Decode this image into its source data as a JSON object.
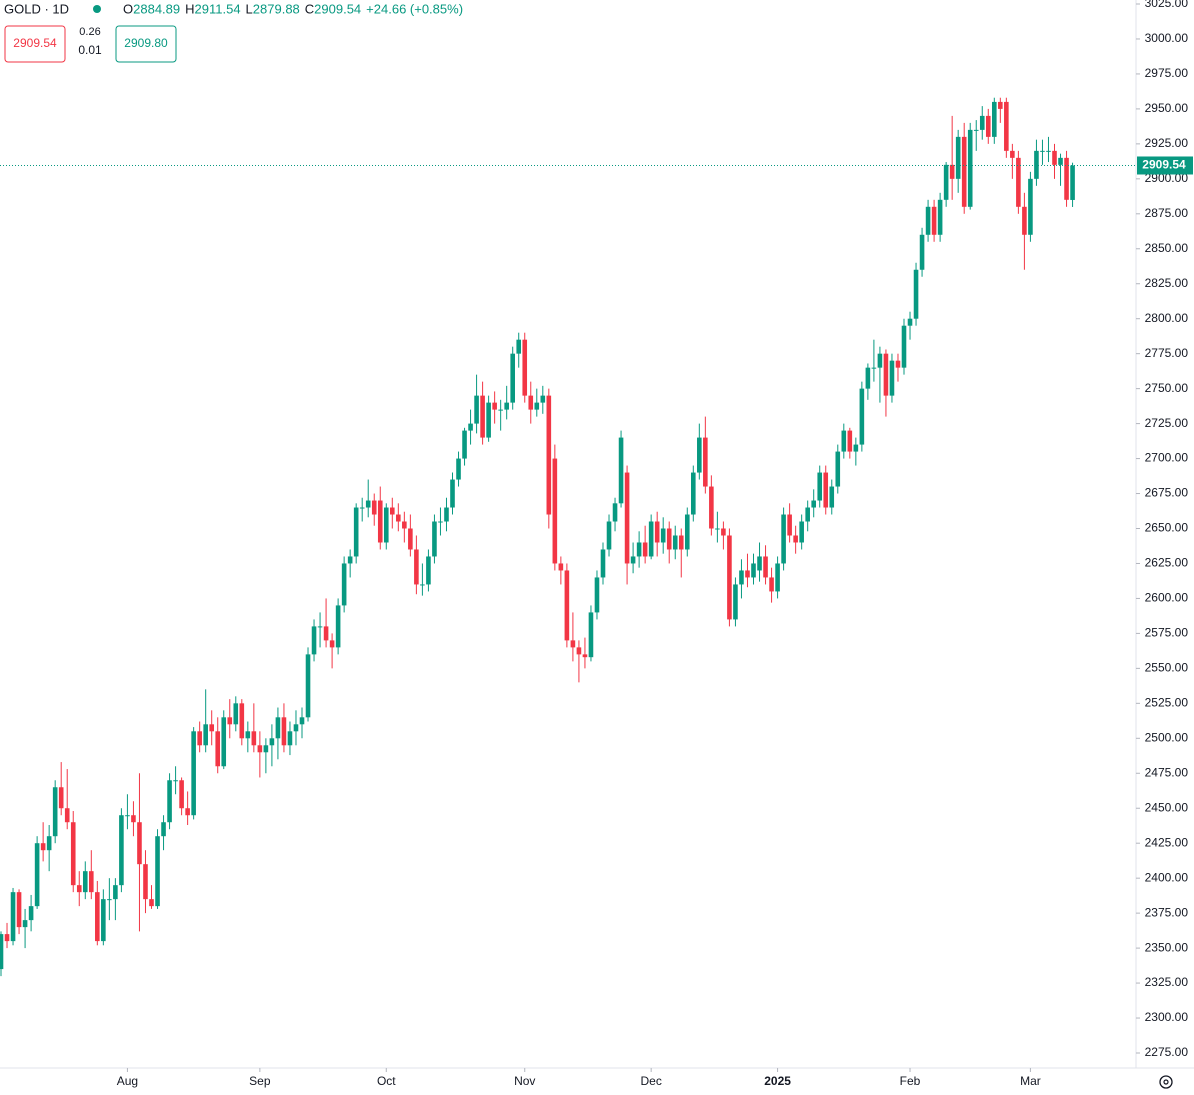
{
  "chart_data": {
    "type": "candlestick",
    "symbol": "GOLD · 1D",
    "legend": {
      "o": "O",
      "h": "H",
      "l": "L",
      "c": "C",
      "change": "+24.66 (+0.85%)"
    },
    "trade_panel": {
      "sell": "2909.54",
      "spread_top": "0.26",
      "spread_bottom": "0.01",
      "buy": "2909.80"
    },
    "up_color": "#089981",
    "down_color": "#f23645",
    "ylim": [
      2275,
      3025
    ],
    "yticks": [
      {
        "value": 2275,
        "label": "2275.00"
      },
      {
        "value": 2300,
        "label": "2300.00"
      },
      {
        "value": 2325,
        "label": "2325.00"
      },
      {
        "value": 2350,
        "label": "2350.00"
      },
      {
        "value": 2375,
        "label": "2375.00"
      },
      {
        "value": 2400,
        "label": "2400.00"
      },
      {
        "value": 2425,
        "label": "2425.00"
      },
      {
        "value": 2450,
        "label": "2450.00"
      },
      {
        "value": 2475,
        "label": "2475.00"
      },
      {
        "value": 2500,
        "label": "2500.00"
      },
      {
        "value": 2525,
        "label": "2525.00"
      },
      {
        "value": 2550,
        "label": "2550.00"
      },
      {
        "value": 2575,
        "label": "2575.00"
      },
      {
        "value": 2600,
        "label": "2600.00"
      },
      {
        "value": 2625,
        "label": "2625.00"
      },
      {
        "value": 2650,
        "label": "2650.00"
      },
      {
        "value": 2675,
        "label": "2675.00"
      },
      {
        "value": 2700,
        "label": "2700.00"
      },
      {
        "value": 2725,
        "label": "2725.00"
      },
      {
        "value": 2750,
        "label": "2750.00"
      },
      {
        "value": 2775,
        "label": "2775.00"
      },
      {
        "value": 2800,
        "label": "2800.00"
      },
      {
        "value": 2825,
        "label": "2825.00"
      },
      {
        "value": 2850,
        "label": "2850.00"
      },
      {
        "value": 2875,
        "label": "2875.00"
      },
      {
        "value": 2900,
        "label": "2900.00"
      },
      {
        "value": 2925,
        "label": "2925.00"
      },
      {
        "value": 2950,
        "label": "2950.00"
      },
      {
        "value": 2975,
        "label": "2975.00"
      },
      {
        "value": 3000,
        "label": "3000.00"
      },
      {
        "value": 3025,
        "label": "3025.00"
      }
    ],
    "xticks": [
      {
        "value": 21,
        "label": "Aug"
      },
      {
        "value": 43,
        "label": "Sep"
      },
      {
        "value": 64,
        "label": "Oct"
      },
      {
        "value": 87,
        "label": "Nov"
      },
      {
        "value": 108,
        "label": "Dec"
      },
      {
        "value": 129,
        "label": "2025"
      },
      {
        "value": 151,
        "label": "Feb"
      },
      {
        "value": 171,
        "label": "Mar"
      }
    ],
    "ohlc": [
      [
        2335,
        2362,
        2330,
        2360
      ],
      [
        2360,
        2368,
        2350,
        2355
      ],
      [
        2355,
        2393,
        2352,
        2390
      ],
      [
        2390,
        2392,
        2360,
        2365
      ],
      [
        2365,
        2378,
        2350,
        2370
      ],
      [
        2370,
        2388,
        2362,
        2380
      ],
      [
        2380,
        2430,
        2378,
        2425
      ],
      [
        2425,
        2440,
        2412,
        2420
      ],
      [
        2420,
        2438,
        2405,
        2430
      ],
      [
        2430,
        2470,
        2425,
        2465
      ],
      [
        2465,
        2483,
        2445,
        2450
      ],
      [
        2450,
        2478,
        2435,
        2440
      ],
      [
        2440,
        2448,
        2390,
        2395
      ],
      [
        2395,
        2405,
        2380,
        2390
      ],
      [
        2390,
        2412,
        2385,
        2405
      ],
      [
        2405,
        2420,
        2385,
        2390
      ],
      [
        2390,
        2398,
        2352,
        2355
      ],
      [
        2355,
        2392,
        2352,
        2385
      ],
      [
        2385,
        2400,
        2370,
        2385
      ],
      [
        2385,
        2400,
        2370,
        2395
      ],
      [
        2395,
        2450,
        2390,
        2445
      ],
      [
        2445,
        2460,
        2435,
        2445
      ],
      [
        2445,
        2455,
        2430,
        2440
      ],
      [
        2440,
        2475,
        2362,
        2410
      ],
      [
        2410,
        2420,
        2375,
        2385
      ],
      [
        2385,
        2395,
        2378,
        2380
      ],
      [
        2380,
        2435,
        2378,
        2430
      ],
      [
        2430,
        2445,
        2420,
        2440
      ],
      [
        2440,
        2475,
        2435,
        2470
      ],
      [
        2470,
        2480,
        2460,
        2470
      ],
      [
        2470,
        2472,
        2445,
        2450
      ],
      [
        2450,
        2462,
        2438,
        2445
      ],
      [
        2445,
        2508,
        2442,
        2505
      ],
      [
        2505,
        2512,
        2490,
        2495
      ],
      [
        2495,
        2535,
        2490,
        2510
      ],
      [
        2510,
        2520,
        2495,
        2505
      ],
      [
        2505,
        2515,
        2475,
        2480
      ],
      [
        2480,
        2520,
        2478,
        2515
      ],
      [
        2515,
        2528,
        2500,
        2510
      ],
      [
        2510,
        2530,
        2505,
        2525
      ],
      [
        2525,
        2528,
        2495,
        2500
      ],
      [
        2500,
        2512,
        2490,
        2505
      ],
      [
        2505,
        2525,
        2490,
        2495
      ],
      [
        2495,
        2505,
        2472,
        2490
      ],
      [
        2490,
        2500,
        2475,
        2495
      ],
      [
        2495,
        2510,
        2480,
        2500
      ],
      [
        2500,
        2522,
        2485,
        2515
      ],
      [
        2515,
        2525,
        2490,
        2495
      ],
      [
        2495,
        2512,
        2488,
        2505
      ],
      [
        2505,
        2520,
        2495,
        2510
      ],
      [
        2510,
        2522,
        2500,
        2515
      ],
      [
        2515,
        2565,
        2512,
        2560
      ],
      [
        2560,
        2585,
        2555,
        2580
      ],
      [
        2580,
        2590,
        2565,
        2580
      ],
      [
        2580,
        2600,
        2565,
        2570
      ],
      [
        2570,
        2575,
        2550,
        2565
      ],
      [
        2565,
        2600,
        2560,
        2595
      ],
      [
        2595,
        2630,
        2590,
        2625
      ],
      [
        2625,
        2635,
        2615,
        2630
      ],
      [
        2630,
        2668,
        2625,
        2665
      ],
      [
        2665,
        2672,
        2655,
        2665
      ],
      [
        2665,
        2685,
        2658,
        2670
      ],
      [
        2670,
        2675,
        2652,
        2660
      ],
      [
        2670,
        2680,
        2635,
        2640
      ],
      [
        2640,
        2668,
        2635,
        2665
      ],
      [
        2665,
        2672,
        2650,
        2660
      ],
      [
        2660,
        2668,
        2648,
        2655
      ],
      [
        2655,
        2662,
        2640,
        2650
      ],
      [
        2650,
        2660,
        2630,
        2635
      ],
      [
        2635,
        2645,
        2603,
        2610
      ],
      [
        2610,
        2625,
        2602,
        2610
      ],
      [
        2610,
        2635,
        2605,
        2630
      ],
      [
        2630,
        2660,
        2625,
        2655
      ],
      [
        2655,
        2665,
        2645,
        2655
      ],
      [
        2655,
        2672,
        2648,
        2665
      ],
      [
        2665,
        2690,
        2660,
        2685
      ],
      [
        2685,
        2705,
        2680,
        2700
      ],
      [
        2700,
        2722,
        2695,
        2720
      ],
      [
        2720,
        2735,
        2710,
        2725
      ],
      [
        2725,
        2760,
        2718,
        2745
      ],
      [
        2745,
        2755,
        2710,
        2715
      ],
      [
        2715,
        2745,
        2712,
        2740
      ],
      [
        2740,
        2748,
        2725,
        2735
      ],
      [
        2735,
        2742,
        2720,
        2735
      ],
      [
        2735,
        2752,
        2728,
        2740
      ],
      [
        2740,
        2780,
        2735,
        2775
      ],
      [
        2775,
        2790,
        2765,
        2785
      ],
      [
        2785,
        2790,
        2740,
        2745
      ],
      [
        2745,
        2755,
        2725,
        2735
      ],
      [
        2735,
        2750,
        2730,
        2740
      ],
      [
        2740,
        2752,
        2732,
        2745
      ],
      [
        2745,
        2750,
        2650,
        2660
      ],
      [
        2700,
        2710,
        2620,
        2625
      ],
      [
        2625,
        2630,
        2610,
        2620
      ],
      [
        2620,
        2625,
        2565,
        2570
      ],
      [
        2570,
        2590,
        2555,
        2565
      ],
      [
        2565,
        2570,
        2540,
        2560
      ],
      [
        2560,
        2572,
        2550,
        2558
      ],
      [
        2558,
        2595,
        2555,
        2590
      ],
      [
        2590,
        2620,
        2585,
        2615
      ],
      [
        2615,
        2640,
        2610,
        2635
      ],
      [
        2635,
        2660,
        2630,
        2655
      ],
      [
        2655,
        2672,
        2648,
        2668
      ],
      [
        2668,
        2720,
        2665,
        2715
      ],
      [
        2690,
        2695,
        2610,
        2625
      ],
      [
        2625,
        2640,
        2618,
        2630
      ],
      [
        2630,
        2648,
        2622,
        2640
      ],
      [
        2640,
        2652,
        2625,
        2630
      ],
      [
        2630,
        2660,
        2628,
        2655
      ],
      [
        2655,
        2662,
        2630,
        2640
      ],
      [
        2640,
        2658,
        2632,
        2650
      ],
      [
        2650,
        2655,
        2625,
        2635
      ],
      [
        2635,
        2652,
        2628,
        2645
      ],
      [
        2645,
        2650,
        2615,
        2635
      ],
      [
        2635,
        2665,
        2630,
        2660
      ],
      [
        2660,
        2695,
        2655,
        2690
      ],
      [
        2690,
        2725,
        2685,
        2715
      ],
      [
        2715,
        2730,
        2675,
        2680
      ],
      [
        2680,
        2688,
        2645,
        2650
      ],
      [
        2650,
        2662,
        2640,
        2650
      ],
      [
        2650,
        2655,
        2635,
        2645
      ],
      [
        2645,
        2650,
        2580,
        2585
      ],
      [
        2585,
        2615,
        2580,
        2610
      ],
      [
        2610,
        2628,
        2600,
        2620
      ],
      [
        2620,
        2632,
        2608,
        2615
      ],
      [
        2615,
        2632,
        2610,
        2625
      ],
      [
        2620,
        2640,
        2612,
        2630
      ],
      [
        2630,
        2638,
        2610,
        2615
      ],
      [
        2615,
        2622,
        2597,
        2605
      ],
      [
        2605,
        2630,
        2600,
        2625
      ],
      [
        2625,
        2665,
        2620,
        2660
      ],
      [
        2660,
        2668,
        2640,
        2645
      ],
      [
        2645,
        2652,
        2632,
        2640
      ],
      [
        2640,
        2660,
        2635,
        2655
      ],
      [
        2655,
        2670,
        2648,
        2665
      ],
      [
        2665,
        2678,
        2658,
        2670
      ],
      [
        2670,
        2695,
        2665,
        2690
      ],
      [
        2690,
        2695,
        2660,
        2665
      ],
      [
        2665,
        2685,
        2660,
        2680
      ],
      [
        2680,
        2710,
        2675,
        2705
      ],
      [
        2705,
        2725,
        2700,
        2720
      ],
      [
        2720,
        2722,
        2700,
        2705
      ],
      [
        2705,
        2715,
        2695,
        2710
      ],
      [
        2710,
        2755,
        2705,
        2750
      ],
      [
        2750,
        2768,
        2742,
        2765
      ],
      [
        2765,
        2785,
        2755,
        2765
      ],
      [
        2765,
        2780,
        2740,
        2775
      ],
      [
        2775,
        2778,
        2730,
        2745
      ],
      [
        2745,
        2775,
        2740,
        2770
      ],
      [
        2770,
        2775,
        2755,
        2765
      ],
      [
        2765,
        2800,
        2760,
        2795
      ],
      [
        2795,
        2805,
        2785,
        2800
      ],
      [
        2800,
        2840,
        2795,
        2835
      ],
      [
        2835,
        2865,
        2830,
        2860
      ],
      [
        2860,
        2885,
        2855,
        2880
      ],
      [
        2880,
        2885,
        2855,
        2860
      ],
      [
        2860,
        2890,
        2855,
        2885
      ],
      [
        2885,
        2912,
        2880,
        2910
      ],
      [
        2910,
        2945,
        2885,
        2900
      ],
      [
        2900,
        2935,
        2890,
        2930
      ],
      [
        2930,
        2940,
        2875,
        2880
      ],
      [
        2880,
        2940,
        2878,
        2935
      ],
      [
        2935,
        2942,
        2920,
        2935
      ],
      [
        2935,
        2952,
        2928,
        2945
      ],
      [
        2945,
        2950,
        2925,
        2930
      ],
      [
        2930,
        2958,
        2925,
        2955
      ],
      [
        2955,
        2958,
        2940,
        2950
      ],
      [
        2955,
        2958,
        2915,
        2920
      ],
      [
        2920,
        2925,
        2900,
        2915
      ],
      [
        2915,
        2920,
        2875,
        2880
      ],
      [
        2880,
        2890,
        2835,
        2860
      ],
      [
        2860,
        2905,
        2855,
        2900
      ],
      [
        2900,
        2928,
        2895,
        2920
      ],
      [
        2920,
        2928,
        2910,
        2920
      ],
      [
        2920,
        2930,
        2912,
        2920
      ],
      [
        2920,
        2925,
        2900,
        2910
      ],
      [
        2910,
        2918,
        2895,
        2915
      ],
      [
        2915,
        2920,
        2880,
        2885
      ],
      [
        2884.89,
        2911.54,
        2879.88,
        2909.54
      ]
    ]
  }
}
